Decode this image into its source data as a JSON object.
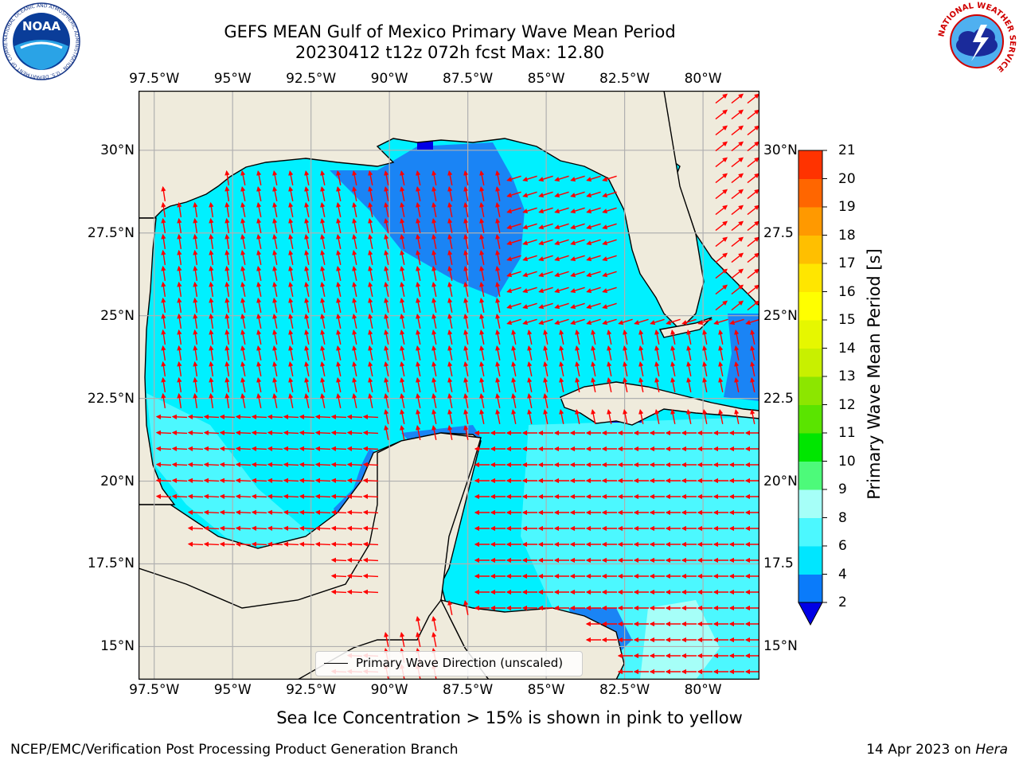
{
  "title_line1": "GEFS MEAN Gulf of Mexico Primary Wave Mean Period",
  "title_line2": "20230412 t12z 072h fcst   Max: 12.80",
  "lon_labels": [
    "97.5°W",
    "95°W",
    "92.5°W",
    "90°W",
    "87.5°W",
    "85°W",
    "82.5°W",
    "80°W"
  ],
  "lon_values": [
    -97.5,
    -95,
    -92.5,
    -90,
    -87.5,
    -85,
    -82.5,
    -80
  ],
  "lat_labels_left": [
    "30°N",
    "27.5°N",
    "25°N",
    "22.5°N",
    "20°N",
    "17.5°N",
    "15°N"
  ],
  "lat_labels_right": [
    "30°N",
    "27.5",
    "25°N",
    "22.5",
    "20°N",
    "17.5",
    "15°N"
  ],
  "lat_values": [
    30,
    27.5,
    25,
    22.5,
    20,
    17.5,
    15
  ],
  "extent": {
    "lon_min": -98,
    "lon_max": -78.2,
    "lat_min": 14,
    "lat_max": 31.8
  },
  "colorbar": {
    "title": "Primary Wave Mean Period [s]",
    "tick_labels": [
      "2",
      "4",
      "6",
      "8",
      "9",
      "10",
      "11",
      "12",
      "13",
      "14",
      "15",
      "16",
      "17",
      "18",
      "19",
      "20",
      "21"
    ],
    "colors": [
      "#0a7bfa",
      "#00e6ff",
      "#4cf8ff",
      "#a6fff8",
      "#4dfa7a",
      "#00e600",
      "#5ae400",
      "#8ce600",
      "#c8f000",
      "#e6f700",
      "#ffff00",
      "#ffe600",
      "#ffbf00",
      "#ff9900",
      "#ff6600",
      "#ff3300"
    ],
    "under_color": "#0000e6"
  },
  "colors": {
    "land": "#efebdc",
    "grid": "#b0b0b0",
    "arrow": "#ff0000",
    "sea_4_6": "#00f0ff",
    "sea_6_8": "#4cf8ff",
    "sea_2_4": "#1a84f5"
  },
  "legend": {
    "label": "Primary Wave Direction (unscaled)"
  },
  "note": "Sea Ice Concentration > 15% is shown in pink to yellow",
  "footer_left": "NCEP/EMC/Verification Post Processing Product Generation Branch",
  "footer_right_prefix": "14 Apr 2023 on ",
  "footer_right_machine": "Hera",
  "logos": {
    "noaa": {
      "word": "NOAA",
      "ring_text": "NATIONAL OCEANIC AND ATMOSPHERIC ADMINISTRATION · U.S. DEPARTMENT OF COMMERCE"
    },
    "nws": {
      "ring_text": "NATIONAL WEATHER SERVICE"
    }
  }
}
